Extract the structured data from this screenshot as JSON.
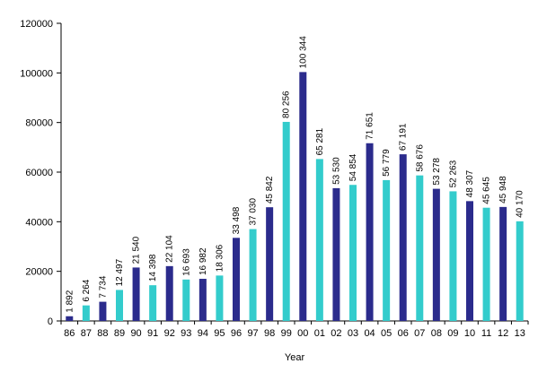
{
  "chart_data": {
    "type": "bar",
    "title": "",
    "xlabel": "Year",
    "ylabel": "",
    "ylim": [
      0,
      120000
    ],
    "yticks": [
      0,
      20000,
      40000,
      60000,
      80000,
      100000,
      120000
    ],
    "ytick_labels": [
      "0",
      "20000",
      "40000",
      "60000",
      "80000",
      "100000",
      "120000"
    ],
    "grid": false,
    "categories": [
      "86",
      "87",
      "88",
      "89",
      "90",
      "91",
      "92",
      "93",
      "94",
      "95",
      "96",
      "97",
      "98",
      "99",
      "00",
      "01",
      "02",
      "03",
      "04",
      "05",
      "06",
      "07",
      "08",
      "09",
      "10",
      "11",
      "12",
      "13"
    ],
    "values": [
      1892,
      6264,
      7734,
      12497,
      21540,
      14398,
      22104,
      16693,
      16982,
      18306,
      33498,
      37030,
      45842,
      80256,
      100344,
      65281,
      53530,
      54854,
      71651,
      56779,
      67191,
      58676,
      53278,
      52263,
      48307,
      45645,
      45948,
      40170
    ],
    "value_labels": [
      "1 892",
      "6 264",
      "7 734",
      "12 497",
      "21 540",
      "14 398",
      "22 104",
      "16 693",
      "16 982",
      "18 306",
      "33 498",
      "37 030",
      "45 842",
      "80 256",
      "100 344",
      "65 281",
      "53 530",
      "54 854",
      "71 651",
      "56 779",
      "67 191",
      "58 676",
      "53 278",
      "52 263",
      "48 307",
      "45 645",
      "45 948",
      "40 170"
    ],
    "bar_colors": [
      "navy",
      "cyan",
      "navy",
      "cyan",
      "navy",
      "cyan",
      "navy",
      "cyan",
      "navy",
      "cyan",
      "navy",
      "cyan",
      "navy",
      "cyan",
      "navy",
      "cyan",
      "navy",
      "cyan",
      "navy",
      "cyan",
      "navy",
      "cyan",
      "navy",
      "cyan",
      "navy",
      "cyan",
      "navy",
      "cyan"
    ],
    "colors": {
      "navy": "#2B2B8C",
      "cyan": "#33CCCC",
      "axis": "#000000"
    }
  }
}
